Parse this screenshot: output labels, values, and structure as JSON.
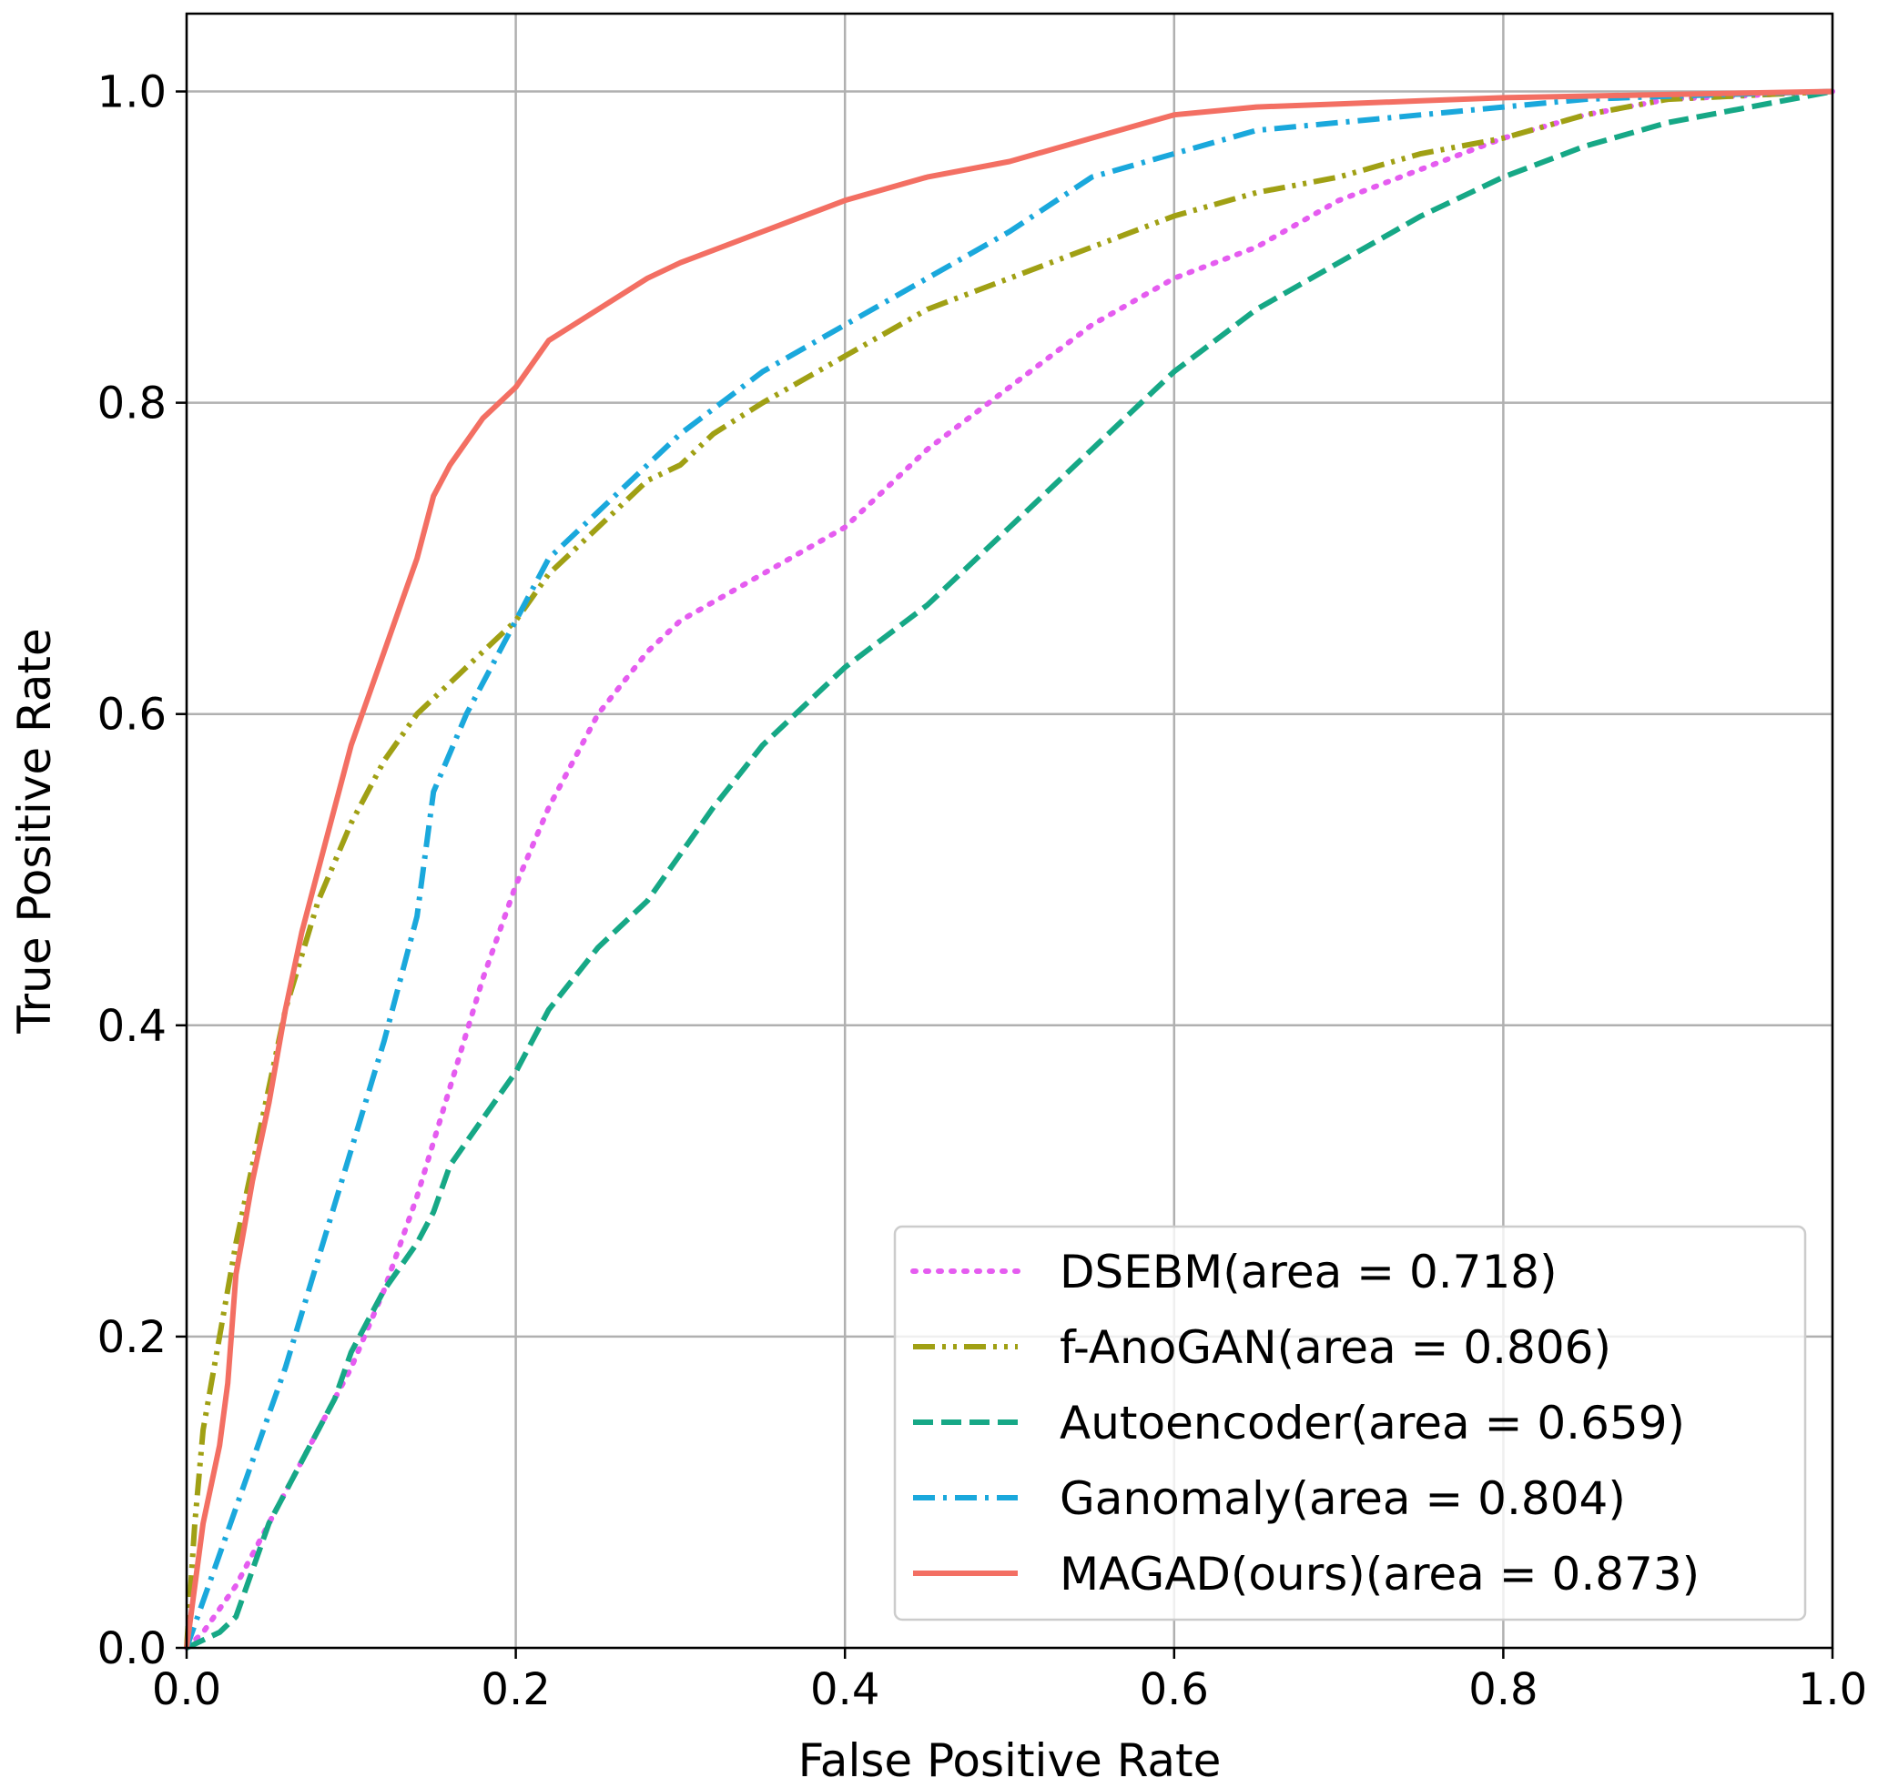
{
  "chart_data": {
    "type": "line",
    "title": "",
    "xlabel": "False Positive Rate",
    "ylabel": "True Positive Rate",
    "xlim": [
      0.0,
      1.0
    ],
    "ylim": [
      0.0,
      1.05
    ],
    "grid": true,
    "legend_position": "lower-right",
    "x_ticks": [
      0.0,
      0.2,
      0.4,
      0.6,
      0.8,
      1.0
    ],
    "x_tick_labels": [
      "0.0",
      "0.2",
      "0.4",
      "0.6",
      "0.8",
      "1.0"
    ],
    "y_ticks": [
      0.0,
      0.2,
      0.4,
      0.6,
      0.8,
      1.0
    ],
    "y_tick_labels": [
      "0.0",
      "0.2",
      "0.4",
      "0.6",
      "0.8",
      "1.0"
    ],
    "series": [
      {
        "name": "DSEBM(area = 0.718)",
        "color": "#e55cf0",
        "style": "dotted",
        "points": [
          [
            0,
            0
          ],
          [
            0.01,
            0.01
          ],
          [
            0.03,
            0.04
          ],
          [
            0.05,
            0.08
          ],
          [
            0.08,
            0.14
          ],
          [
            0.1,
            0.18
          ],
          [
            0.12,
            0.23
          ],
          [
            0.14,
            0.29
          ],
          [
            0.16,
            0.36
          ],
          [
            0.18,
            0.43
          ],
          [
            0.2,
            0.49
          ],
          [
            0.22,
            0.54
          ],
          [
            0.25,
            0.6
          ],
          [
            0.28,
            0.64
          ],
          [
            0.3,
            0.66
          ],
          [
            0.35,
            0.69
          ],
          [
            0.4,
            0.72
          ],
          [
            0.45,
            0.77
          ],
          [
            0.5,
            0.81
          ],
          [
            0.55,
            0.85
          ],
          [
            0.6,
            0.88
          ],
          [
            0.65,
            0.9
          ],
          [
            0.7,
            0.93
          ],
          [
            0.75,
            0.95
          ],
          [
            0.8,
            0.97
          ],
          [
            0.85,
            0.985
          ],
          [
            0.9,
            0.995
          ],
          [
            1.0,
            1.0
          ]
        ]
      },
      {
        "name": "f-AnoGAN(area = 0.806)",
        "color": "#a0a014",
        "style": "dashdotdot",
        "points": [
          [
            0,
            0
          ],
          [
            0.005,
            0.08
          ],
          [
            0.01,
            0.14
          ],
          [
            0.02,
            0.2
          ],
          [
            0.03,
            0.26
          ],
          [
            0.04,
            0.31
          ],
          [
            0.05,
            0.36
          ],
          [
            0.06,
            0.41
          ],
          [
            0.08,
            0.48
          ],
          [
            0.1,
            0.53
          ],
          [
            0.12,
            0.57
          ],
          [
            0.14,
            0.6
          ],
          [
            0.16,
            0.62
          ],
          [
            0.18,
            0.64
          ],
          [
            0.2,
            0.66
          ],
          [
            0.22,
            0.69
          ],
          [
            0.25,
            0.72
          ],
          [
            0.28,
            0.75
          ],
          [
            0.3,
            0.76
          ],
          [
            0.32,
            0.78
          ],
          [
            0.35,
            0.8
          ],
          [
            0.4,
            0.83
          ],
          [
            0.45,
            0.86
          ],
          [
            0.5,
            0.88
          ],
          [
            0.55,
            0.9
          ],
          [
            0.6,
            0.92
          ],
          [
            0.65,
            0.935
          ],
          [
            0.7,
            0.945
          ],
          [
            0.75,
            0.96
          ],
          [
            0.8,
            0.97
          ],
          [
            0.85,
            0.985
          ],
          [
            0.9,
            0.995
          ],
          [
            1.0,
            1.0
          ]
        ]
      },
      {
        "name": "Autoencoder(area = 0.659)",
        "color": "#16a886",
        "style": "dashed",
        "points": [
          [
            0,
            0
          ],
          [
            0.01,
            0.005
          ],
          [
            0.02,
            0.01
          ],
          [
            0.03,
            0.02
          ],
          [
            0.04,
            0.05
          ],
          [
            0.05,
            0.08
          ],
          [
            0.07,
            0.12
          ],
          [
            0.09,
            0.16
          ],
          [
            0.1,
            0.19
          ],
          [
            0.12,
            0.23
          ],
          [
            0.14,
            0.26
          ],
          [
            0.15,
            0.28
          ],
          [
            0.16,
            0.31
          ],
          [
            0.18,
            0.34
          ],
          [
            0.2,
            0.37
          ],
          [
            0.22,
            0.41
          ],
          [
            0.25,
            0.45
          ],
          [
            0.28,
            0.48
          ],
          [
            0.3,
            0.51
          ],
          [
            0.32,
            0.54
          ],
          [
            0.35,
            0.58
          ],
          [
            0.38,
            0.61
          ],
          [
            0.4,
            0.63
          ],
          [
            0.45,
            0.67
          ],
          [
            0.5,
            0.72
          ],
          [
            0.55,
            0.77
          ],
          [
            0.6,
            0.82
          ],
          [
            0.65,
            0.86
          ],
          [
            0.7,
            0.89
          ],
          [
            0.75,
            0.92
          ],
          [
            0.8,
            0.945
          ],
          [
            0.85,
            0.965
          ],
          [
            0.9,
            0.98
          ],
          [
            0.95,
            0.99
          ],
          [
            1.0,
            1.0
          ]
        ]
      },
      {
        "name": "Ganomaly(area = 0.804)",
        "color": "#1aa8dc",
        "style": "dashdot",
        "points": [
          [
            0,
            0
          ],
          [
            0.02,
            0.06
          ],
          [
            0.04,
            0.12
          ],
          [
            0.06,
            0.18
          ],
          [
            0.08,
            0.25
          ],
          [
            0.1,
            0.32
          ],
          [
            0.12,
            0.39
          ],
          [
            0.14,
            0.47
          ],
          [
            0.15,
            0.55
          ],
          [
            0.17,
            0.6
          ],
          [
            0.2,
            0.66
          ],
          [
            0.22,
            0.7
          ],
          [
            0.25,
            0.73
          ],
          [
            0.28,
            0.76
          ],
          [
            0.3,
            0.78
          ],
          [
            0.35,
            0.82
          ],
          [
            0.4,
            0.85
          ],
          [
            0.45,
            0.88
          ],
          [
            0.5,
            0.91
          ],
          [
            0.55,
            0.945
          ],
          [
            0.6,
            0.96
          ],
          [
            0.65,
            0.975
          ],
          [
            0.7,
            0.98
          ],
          [
            0.75,
            0.985
          ],
          [
            0.8,
            0.99
          ],
          [
            0.85,
            0.995
          ],
          [
            0.9,
            0.997
          ],
          [
            1.0,
            1.0
          ]
        ]
      },
      {
        "name": "MAGAD(ours)(area = 0.873)",
        "color": "#f36f63",
        "style": "solid",
        "points": [
          [
            0,
            0
          ],
          [
            0.01,
            0.08
          ],
          [
            0.02,
            0.13
          ],
          [
            0.025,
            0.17
          ],
          [
            0.03,
            0.24
          ],
          [
            0.035,
            0.27
          ],
          [
            0.04,
            0.3
          ],
          [
            0.05,
            0.35
          ],
          [
            0.06,
            0.41
          ],
          [
            0.07,
            0.46
          ],
          [
            0.08,
            0.5
          ],
          [
            0.09,
            0.54
          ],
          [
            0.1,
            0.58
          ],
          [
            0.11,
            0.61
          ],
          [
            0.12,
            0.64
          ],
          [
            0.13,
            0.67
          ],
          [
            0.14,
            0.7
          ],
          [
            0.15,
            0.74
          ],
          [
            0.16,
            0.76
          ],
          [
            0.18,
            0.79
          ],
          [
            0.2,
            0.81
          ],
          [
            0.22,
            0.84
          ],
          [
            0.25,
            0.86
          ],
          [
            0.28,
            0.88
          ],
          [
            0.3,
            0.89
          ],
          [
            0.35,
            0.91
          ],
          [
            0.4,
            0.93
          ],
          [
            0.45,
            0.945
          ],
          [
            0.5,
            0.955
          ],
          [
            0.55,
            0.97
          ],
          [
            0.6,
            0.985
          ],
          [
            0.65,
            0.99
          ],
          [
            0.7,
            0.992
          ],
          [
            0.75,
            0.994
          ],
          [
            0.8,
            0.996
          ],
          [
            0.9,
            0.998
          ],
          [
            1.0,
            1.0
          ]
        ]
      }
    ]
  }
}
